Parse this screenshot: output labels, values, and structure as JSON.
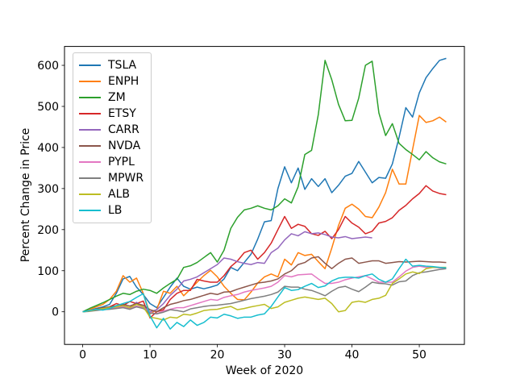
{
  "chart_data": {
    "type": "line",
    "title": "",
    "xlabel": "Week of 2020",
    "ylabel": "Percent Change in Price",
    "xticks": [
      0,
      10,
      20,
      30,
      40,
      50
    ],
    "yticks": [
      0,
      100,
      200,
      300,
      400,
      500,
      600
    ],
    "xlim": [
      -2.7,
      56.7
    ],
    "ylim": [
      -79.5,
      646
    ],
    "grid": false,
    "line_width": 1.5,
    "legend": {
      "location": "upper left"
    },
    "x": [
      0,
      1,
      2,
      3,
      4,
      5,
      6,
      7,
      8,
      9,
      10,
      11,
      12,
      13,
      14,
      15,
      16,
      17,
      18,
      19,
      20,
      21,
      22,
      23,
      24,
      25,
      26,
      27,
      28,
      29,
      30,
      31,
      32,
      33,
      34,
      35,
      36,
      37,
      38,
      39,
      40,
      41,
      42,
      43,
      44,
      45,
      46,
      47,
      48,
      49,
      50,
      51,
      52,
      53,
      54
    ],
    "series": [
      {
        "name": "TSLA",
        "color": "#1f77b4",
        "values": [
          0,
          3,
          8,
          12,
          18,
          45,
          80,
          86,
          60,
          42,
          20,
          10,
          35,
          60,
          82,
          62,
          55,
          60,
          56,
          60,
          65,
          80,
          108,
          100,
          120,
          140,
          177,
          219,
          222,
          300,
          353,
          314,
          350,
          298,
          324,
          305,
          324,
          290,
          308,
          330,
          337,
          366,
          340,
          314,
          327,
          325,
          360,
          425,
          497,
          474,
          533,
          570,
          592,
          612,
          617
        ]
      },
      {
        "name": "ENPH",
        "color": "#ff7f0e",
        "values": [
          0,
          5,
          12,
          18,
          30,
          50,
          88,
          72,
          82,
          45,
          -5,
          5,
          50,
          45,
          62,
          39,
          55,
          72,
          88,
          101,
          85,
          62,
          45,
          30,
          29,
          48,
          70,
          85,
          92,
          85,
          128,
          114,
          144,
          137,
          140,
          122,
          105,
          155,
          210,
          252,
          262,
          250,
          232,
          229,
          255,
          290,
          347,
          311,
          311,
          395,
          478,
          461,
          465,
          474,
          462
        ]
      },
      {
        "name": "ZM",
        "color": "#2ca02c",
        "values": [
          0,
          8,
          15,
          22,
          30,
          38,
          45,
          42,
          50,
          55,
          52,
          45,
          58,
          69,
          79,
          108,
          112,
          120,
          132,
          144,
          121,
          150,
          203,
          230,
          248,
          252,
          258,
          252,
          248,
          258,
          275,
          265,
          304,
          383,
          393,
          480,
          612,
          565,
          505,
          465,
          466,
          520,
          600,
          610,
          484,
          429,
          458,
          410,
          395,
          383,
          370,
          390,
          375,
          365,
          360
        ]
      },
      {
        "name": "ETSY",
        "color": "#d62728",
        "values": [
          0,
          2,
          5,
          8,
          12,
          20,
          15,
          25,
          20,
          26,
          -15,
          0,
          5,
          30,
          45,
          52,
          52,
          79,
          75,
          72,
          72,
          88,
          110,
          124,
          144,
          150,
          128,
          144,
          167,
          200,
          232,
          203,
          213,
          208,
          190,
          186,
          196,
          178,
          200,
          232,
          216,
          206,
          190,
          196,
          216,
          220,
          229,
          247,
          259,
          275,
          288,
          307,
          294,
          288,
          285
        ]
      },
      {
        "name": "CARR",
        "color": "#9467bd",
        "values": [
          0,
          2,
          4,
          6,
          8,
          10,
          14,
          10,
          23,
          12,
          0,
          5,
          20,
          40,
          55,
          75,
          79,
          85,
          95,
          105,
          115,
          131,
          128,
          122,
          118,
          115,
          120,
          118,
          144,
          155,
          175,
          190,
          185,
          195,
          190,
          192,
          188,
          182,
          180,
          183,
          178,
          180,
          182,
          180,
          null,
          null,
          null,
          null,
          null,
          null,
          null,
          null,
          null,
          null,
          null
        ]
      },
      {
        "name": "NVDA",
        "color": "#8c564b",
        "values": [
          0,
          3,
          7,
          10,
          12,
          15,
          18,
          14,
          20,
          16,
          5,
          0,
          10,
          18,
          22,
          27,
          30,
          35,
          40,
          45,
          42,
          48,
          49,
          55,
          60,
          65,
          70,
          72,
          75,
          80,
          92,
          100,
          115,
          120,
          131,
          134,
          118,
          105,
          118,
          128,
          131,
          118,
          121,
          124,
          124,
          118,
          120,
          122,
          121,
          122,
          123,
          122,
          121,
          121,
          120
        ]
      },
      {
        "name": "PYPL",
        "color": "#e377c2",
        "values": [
          0,
          2,
          4,
          6,
          8,
          10,
          12,
          8,
          14,
          10,
          -2,
          -5,
          2,
          6,
          10,
          10,
          15,
          20,
          25,
          30,
          28,
          35,
          39,
          42,
          48,
          52,
          55,
          58,
          62,
          72,
          88,
          85,
          90,
          91,
          92,
          80,
          69,
          69,
          72,
          78,
          82,
          85,
          88,
          80,
          72,
          72,
          72,
          85,
          99,
          108,
          111,
          108,
          108,
          107,
          107
        ]
      },
      {
        "name": "MPWR",
        "color": "#7f7f7f",
        "values": [
          0,
          1,
          3,
          5,
          6,
          8,
          10,
          6,
          12,
          8,
          -3,
          -5,
          -1,
          5,
          3,
          0,
          7,
          10,
          13,
          15,
          16,
          18,
          20,
          24,
          28,
          32,
          35,
          38,
          42,
          48,
          62,
          60,
          60,
          55,
          52,
          46,
          39,
          50,
          59,
          62,
          55,
          49,
          60,
          72,
          69,
          68,
          65,
          73,
          75,
          88,
          95,
          97,
          100,
          103,
          105
        ]
      },
      {
        "name": "ALB",
        "color": "#bcbd22",
        "values": [
          0,
          2,
          5,
          8,
          10,
          12,
          15,
          10,
          18,
          12,
          -13,
          -16,
          -20,
          -13,
          -15,
          -6,
          -8,
          -3,
          3,
          5,
          6,
          10,
          13,
          5,
          8,
          12,
          15,
          18,
          8,
          12,
          23,
          28,
          33,
          36,
          33,
          30,
          33,
          20,
          0,
          3,
          23,
          26,
          23,
          30,
          33,
          40,
          69,
          80,
          92,
          97,
          93,
          105,
          108,
          108,
          108
        ]
      },
      {
        "name": "LB",
        "color": "#17becf",
        "values": [
          0,
          3,
          6,
          4,
          8,
          15,
          20,
          25,
          35,
          44,
          -10,
          -39,
          -16,
          -42,
          -26,
          -36,
          -20,
          -33,
          -26,
          -13,
          -15,
          -6,
          -10,
          -16,
          -13,
          -13,
          -8,
          -5,
          13,
          36,
          59,
          52,
          54,
          62,
          69,
          59,
          63,
          75,
          82,
          84,
          84,
          82,
          88,
          92,
          79,
          72,
          80,
          105,
          128,
          111,
          113,
          111,
          110,
          108,
          107
        ]
      }
    ]
  }
}
